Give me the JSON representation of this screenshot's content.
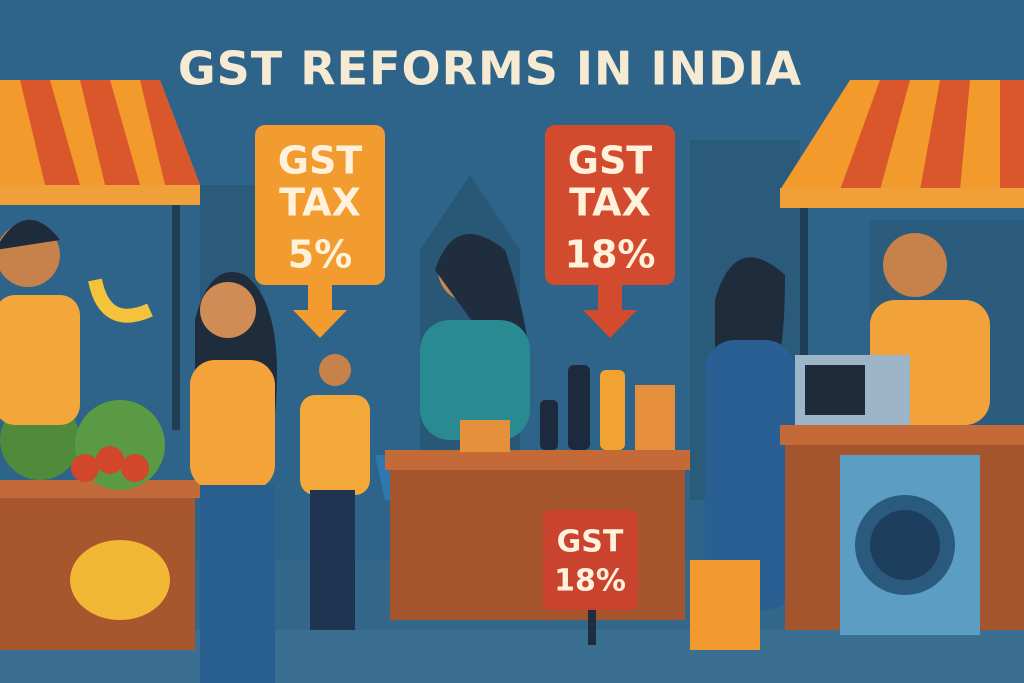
{
  "header": {
    "title": "GST REFORMS IN INDIA"
  },
  "signs": [
    {
      "lines": [
        "GST",
        "TAX",
        "5%"
      ]
    },
    {
      "lines": [
        "GST",
        "TAX",
        "18%"
      ]
    },
    {
      "lines": [
        "GST",
        "18%"
      ]
    }
  ]
}
